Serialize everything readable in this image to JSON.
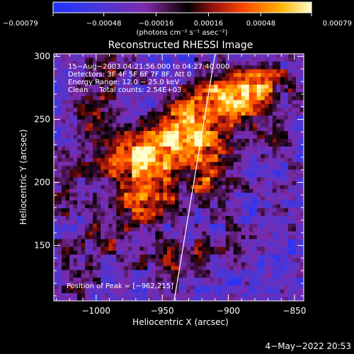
{
  "chart_data": {
    "type": "heatmap",
    "title": "Reconstructed RHESSI Image",
    "xlabel": "Heliocentric X (arcsec)",
    "ylabel": "Heliocentric Y (arcsec)",
    "xlim": [
      -1032,
      -843
    ],
    "ylim": [
      106,
      302
    ],
    "xticks": [
      -1000,
      -950,
      -900,
      -850
    ],
    "xtick_labels": [
      "−1000",
      "−950",
      "−900",
      "−850"
    ],
    "yticks": [
      150,
      200,
      250,
      300
    ],
    "ytick_labels": [
      "150",
      "200",
      "250",
      "300"
    ],
    "colorbar": {
      "range": [
        -0.00079,
        0.00079
      ],
      "ticks": [
        -0.00079,
        -0.00048,
        -0.00016,
        0.00016,
        0.00048,
        0.00079
      ],
      "tick_labels": [
        "−0.00079",
        "−0.00048",
        "−0.00016",
        "0.00016",
        "0.00048",
        "0.00079"
      ],
      "unit_label": "(photons cm⁻² s⁻¹ asec⁻²)"
    },
    "annotations": [
      "15−Aug−2003 04:21:56.000 to 04:27:40.000",
      "Detectors: 3F 4F 5F 6F 7F 8F, Att 0",
      "Energy Range: 12.0 − 25.0 keV",
      "Clean     Total counts: 2.54E+03"
    ],
    "peak_label": "Position of Peak = [−962,215]",
    "peak": [
      -962,
      215
    ],
    "limb_line": [
      [
        -941,
        106
      ],
      [
        -910,
        302
      ]
    ],
    "emission_blobs": [
      {
        "x": -970,
        "y": 218,
        "sx": 22,
        "sy": 16,
        "a": 1.0
      },
      {
        "x": -935,
        "y": 238,
        "sx": 18,
        "sy": 14,
        "a": 0.9
      },
      {
        "x": -905,
        "y": 262,
        "sx": 20,
        "sy": 14,
        "a": 0.85
      },
      {
        "x": -880,
        "y": 280,
        "sx": 18,
        "sy": 12,
        "a": 0.75
      },
      {
        "x": -960,
        "y": 185,
        "sx": 14,
        "sy": 12,
        "a": 0.7
      },
      {
        "x": -1000,
        "y": 255,
        "sx": 12,
        "sy": 14,
        "a": 0.55
      },
      {
        "x": -915,
        "y": 210,
        "sx": 14,
        "sy": 18,
        "a": 0.6
      },
      {
        "x": -990,
        "y": 160,
        "sx": 14,
        "sy": 16,
        "a": 0.45
      },
      {
        "x": -940,
        "y": 140,
        "sx": 18,
        "sy": 14,
        "a": 0.4
      },
      {
        "x": -1015,
        "y": 130,
        "sx": 10,
        "sy": 14,
        "a": 0.35
      },
      {
        "x": -870,
        "y": 235,
        "sx": 10,
        "sy": 12,
        "a": 0.4
      },
      {
        "x": -985,
        "y": 290,
        "sx": 14,
        "sy": 10,
        "a": 0.4
      },
      {
        "x": -1020,
        "y": 200,
        "sx": 10,
        "sy": 16,
        "a": 0.3
      },
      {
        "x": -900,
        "y": 150,
        "sx": 12,
        "sy": 10,
        "a": 0.3
      }
    ],
    "grid": false
  },
  "footer_date": "4−May−2022 20:53"
}
